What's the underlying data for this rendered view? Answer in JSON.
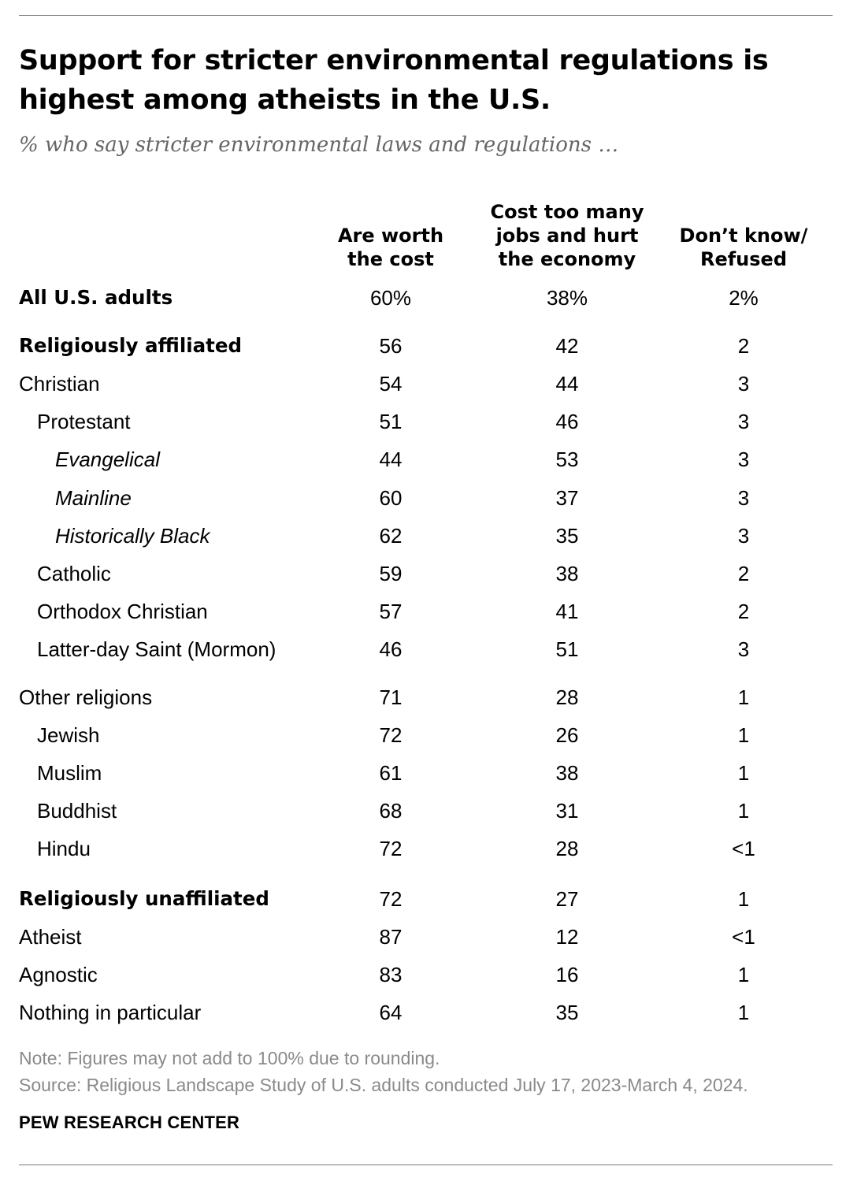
{
  "chart_data": {
    "type": "table",
    "title": "Support for stricter environmental regulations is highest among atheists in the U.S.",
    "subtitle": "% who say stricter environmental laws and regulations …",
    "columns": [
      {
        "lines": [
          "Are worth",
          "the cost"
        ]
      },
      {
        "lines": [
          "Cost too many",
          "jobs and hurt",
          "the economy"
        ]
      },
      {
        "lines": [
          "Don’t know/",
          "Refused"
        ]
      }
    ],
    "rows": [
      {
        "label": "All U.S. adults",
        "style": "bold",
        "indent": 0,
        "values": [
          "60%",
          "38%",
          "2%"
        ]
      },
      {
        "label": "Religiously affiliated",
        "style": "bold",
        "indent": 0,
        "values": [
          "56",
          "42",
          "2"
        ]
      },
      {
        "label": "Christian",
        "style": "normal",
        "indent": 0,
        "values": [
          "54",
          "44",
          "3"
        ]
      },
      {
        "label": "Protestant",
        "style": "normal",
        "indent": 1,
        "values": [
          "51",
          "46",
          "3"
        ]
      },
      {
        "label": "Evangelical",
        "style": "italic",
        "indent": 2,
        "values": [
          "44",
          "53",
          "3"
        ]
      },
      {
        "label": "Mainline",
        "style": "italic",
        "indent": 2,
        "values": [
          "60",
          "37",
          "3"
        ]
      },
      {
        "label": "Historically Black",
        "style": "italic",
        "indent": 2,
        "values": [
          "62",
          "35",
          "3"
        ]
      },
      {
        "label": "Catholic",
        "style": "normal",
        "indent": 1,
        "values": [
          "59",
          "38",
          "2"
        ]
      },
      {
        "label": "Orthodox Christian",
        "style": "normal",
        "indent": 1,
        "values": [
          "57",
          "41",
          "2"
        ]
      },
      {
        "label": "Latter-day Saint (Mormon)",
        "style": "normal",
        "indent": 1,
        "values": [
          "46",
          "51",
          "3"
        ]
      },
      {
        "label": "Other religions",
        "style": "normal",
        "indent": 0,
        "values": [
          "71",
          "28",
          "1"
        ]
      },
      {
        "label": "Jewish",
        "style": "normal",
        "indent": 1,
        "values": [
          "72",
          "26",
          "1"
        ]
      },
      {
        "label": "Muslim",
        "style": "normal",
        "indent": 1,
        "values": [
          "61",
          "38",
          "1"
        ]
      },
      {
        "label": "Buddhist",
        "style": "normal",
        "indent": 1,
        "values": [
          "68",
          "31",
          "1"
        ]
      },
      {
        "label": "Hindu",
        "style": "normal",
        "indent": 1,
        "values": [
          "72",
          "28",
          "<1"
        ]
      },
      {
        "label": "Religiously unaffiliated",
        "style": "bold",
        "indent": 0,
        "values": [
          "72",
          "27",
          "1"
        ]
      },
      {
        "label": "Atheist",
        "style": "normal",
        "indent": 0,
        "values": [
          "87",
          "12",
          "<1"
        ]
      },
      {
        "label": "Agnostic",
        "style": "normal",
        "indent": 0,
        "values": [
          "83",
          "16",
          "1"
        ]
      },
      {
        "label": "Nothing in particular",
        "style": "normal",
        "indent": 0,
        "values": [
          "64",
          "35",
          "1"
        ]
      }
    ]
  },
  "notes": {
    "note": "Note: Figures may not add to 100% due to rounding.",
    "source": "Source: Religious Landscape Study of U.S. adults conducted July 17, 2023-March 4, 2024."
  },
  "brand": "PEW RESEARCH CENTER"
}
